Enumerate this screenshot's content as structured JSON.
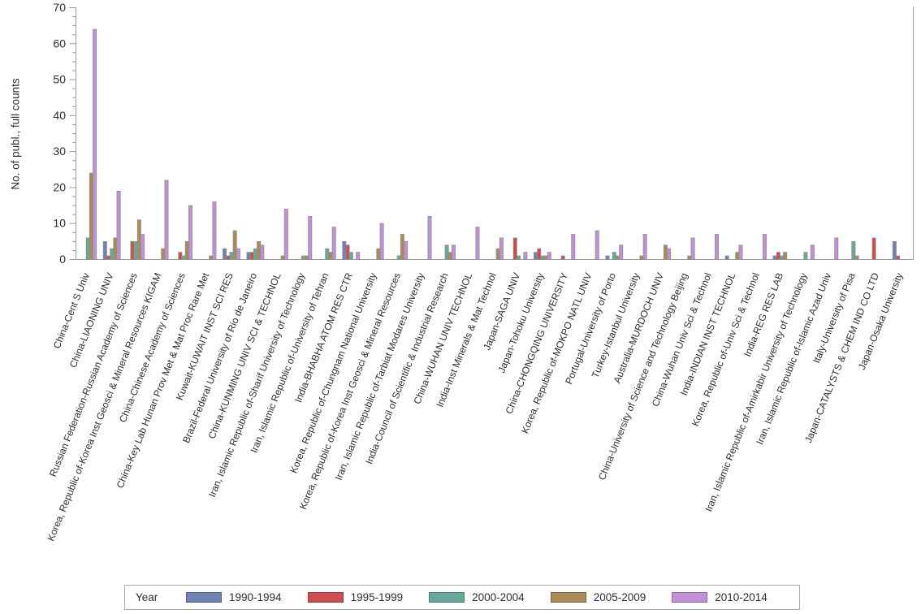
{
  "chart_data": {
    "type": "bar",
    "title": "",
    "xlabel": "",
    "ylabel": "No. of publ., full counts",
    "ylim": [
      0,
      70
    ],
    "yticks": [
      0,
      10,
      20,
      30,
      40,
      50,
      60,
      70
    ],
    "minor_tick_step": 2.5,
    "grid": false,
    "legend_position": "bottom",
    "legend_title": "Year",
    "axis_color": "#9c9c9c",
    "text_color": "#2e2e2e",
    "bar_stroke_color": "#8f8f8f",
    "categories": [
      "China-Cent S Univ",
      "China-LIAONING UNIV",
      "Russian Federation-Russian Academy of Sciences",
      "Korea, Republic of-Korea Inst Geosci & Mineral Resources KIGAM",
      "China-Chinese Academy of Sciences",
      "China-Key Lab Hunan Prov Met & Mat Proc Rare Met",
      "Kuwait-KUWAIT INST SCI RES",
      "Brazil-Federal University of Rio de Janeiro",
      "China-KUNMING UNIV SCI & TECHNOL",
      "Iran, Islamic Republic of-Sharif University of Technology",
      "Iran, Islamic Republic of-University of Tehran",
      "India-BHABHA ATOM RES CTR",
      "Korea, Republic of-Chungnam National University",
      "Korea, Republic of-Korea Inst Geosci & Mineral Resources",
      "Iran, Islamic Republic of-Tarbiat Modares University",
      "India-Council of Scientific & Industrial Research",
      "China-WUHAN UNIV TECHNOL",
      "India-Inst Minerals & Mat Technol",
      "Japan-SAGA UNIV",
      "Japan-Tohoku University",
      "China-CHONGQING UNIVERSITY",
      "Korea, Republic of-MOKPO NATL UNIV",
      "Portugal-University of Porto",
      "Turkey-Istanbul University",
      "Australia-MURDOCH UNIV",
      "China-University of Science and Technology Beijing",
      "China-Wuhan Univ Sci & Technol",
      "India-INDIAN INST TECHNOL",
      "Korea, Republic of-Univ Sci & Technol",
      "India-REG RES LAB",
      "Iran, Islamic Republic of-Amirkabir University of Technology",
      "Iran, Islamic Republic of-Islamic Azad Univ",
      "Italy-University of Pisa",
      "Japan-CATALYSTS & CHEM IND CO LTD",
      "Japan-Osaka University"
    ],
    "series": [
      {
        "name": "1990-1994",
        "color": "#7081b2",
        "values": [
          0,
          5,
          0,
          0,
          0,
          0,
          3,
          2,
          0,
          0,
          0,
          5,
          0,
          0,
          0,
          0,
          0,
          0,
          0,
          2,
          0,
          0,
          1,
          0,
          0,
          0,
          0,
          1,
          0,
          1,
          0,
          0,
          0,
          0,
          5
        ]
      },
      {
        "name": "1995-1999",
        "color": "#c9504e",
        "values": [
          0,
          1,
          5,
          0,
          2,
          0,
          1,
          2,
          0,
          0,
          0,
          4,
          0,
          0,
          0,
          0,
          0,
          0,
          6,
          3,
          1,
          0,
          0,
          0,
          0,
          0,
          0,
          0,
          0,
          2,
          0,
          0,
          0,
          6,
          1
        ]
      },
      {
        "name": "2000-2004",
        "color": "#69a79a",
        "values": [
          6,
          3,
          5,
          0,
          1,
          0,
          2,
          3,
          0,
          1,
          3,
          2,
          0,
          1,
          0,
          4,
          0,
          0,
          1,
          1,
          0,
          0,
          2,
          0,
          0,
          0,
          0,
          0,
          0,
          1,
          2,
          0,
          5,
          0,
          0
        ]
      },
      {
        "name": "2005-2009",
        "color": "#a98a58",
        "values": [
          24,
          6,
          11,
          3,
          5,
          1,
          8,
          5,
          1,
          1,
          2,
          0,
          3,
          7,
          0,
          2,
          0,
          3,
          0,
          1,
          0,
          0,
          1,
          1,
          4,
          1,
          0,
          2,
          0,
          2,
          0,
          0,
          1,
          0,
          0
        ]
      },
      {
        "name": "2010-2014",
        "color": "#c191d8",
        "values": [
          64,
          19,
          7,
          22,
          15,
          16,
          3,
          4,
          14,
          12,
          9,
          2,
          10,
          5,
          12,
          4,
          9,
          6,
          2,
          2,
          7,
          8,
          4,
          7,
          3,
          6,
          7,
          4,
          7,
          0,
          4,
          6,
          0,
          0,
          0
        ]
      }
    ]
  }
}
